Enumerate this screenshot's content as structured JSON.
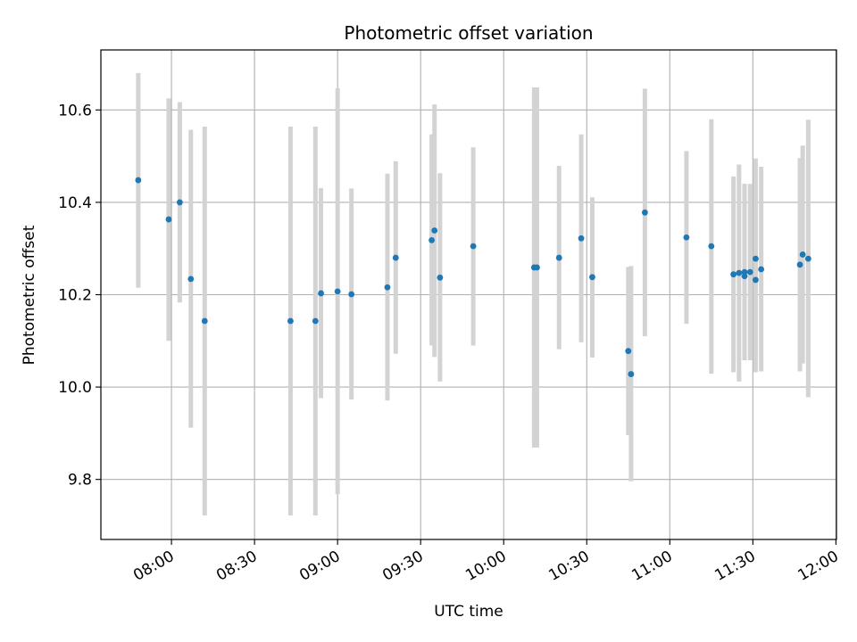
{
  "chart_data": {
    "type": "scatter",
    "title": "Photometric offset variation",
    "xlabel": "UTC time",
    "ylabel": "Photometric offset",
    "x_ticks": [
      "08:00",
      "08:30",
      "09:00",
      "09:30",
      "10:00",
      "10:30",
      "11:00",
      "11:30",
      "12:00"
    ],
    "x_tick_minutes": [
      480,
      510,
      540,
      570,
      600,
      630,
      660,
      690,
      720
    ],
    "y_ticks": [
      9.8,
      10.0,
      10.2,
      10.4,
      10.6
    ],
    "xlim": [
      "07:35",
      "12:00"
    ],
    "ylim": [
      9.67,
      10.73
    ],
    "grid": true,
    "marker_color": "#1f77b4",
    "errorbar_color": "#d3d3d3",
    "points": [
      {
        "t": "07:48",
        "y": 10.448,
        "low": 10.215,
        "high": 10.68
      },
      {
        "t": "07:59",
        "y": 10.363,
        "low": 10.1,
        "high": 10.625
      },
      {
        "t": "08:03",
        "y": 10.4,
        "low": 10.183,
        "high": 10.617
      },
      {
        "t": "08:07",
        "y": 10.234,
        "low": 9.912,
        "high": 10.557
      },
      {
        "t": "08:12",
        "y": 10.143,
        "low": 9.722,
        "high": 10.564
      },
      {
        "t": "08:43",
        "y": 10.143,
        "low": 9.722,
        "high": 10.564
      },
      {
        "t": "08:52",
        "y": 10.143,
        "low": 9.722,
        "high": 10.564
      },
      {
        "t": "08:54",
        "y": 10.203,
        "low": 9.976,
        "high": 10.431
      },
      {
        "t": "09:00",
        "y": 10.207,
        "low": 9.768,
        "high": 10.647
      },
      {
        "t": "09:05",
        "y": 10.201,
        "low": 9.973,
        "high": 10.43
      },
      {
        "t": "09:18",
        "y": 10.216,
        "low": 9.971,
        "high": 10.462
      },
      {
        "t": "09:21",
        "y": 10.28,
        "low": 10.072,
        "high": 10.489
      },
      {
        "t": "09:34",
        "y": 10.318,
        "low": 10.09,
        "high": 10.547
      },
      {
        "t": "09:35",
        "y": 10.339,
        "low": 10.065,
        "high": 10.612
      },
      {
        "t": "09:37",
        "y": 10.237,
        "low": 10.012,
        "high": 10.463
      },
      {
        "t": "09:49",
        "y": 10.305,
        "low": 10.09,
        "high": 10.519
      },
      {
        "t": "10:11",
        "y": 10.259,
        "low": 9.869,
        "high": 10.649
      },
      {
        "t": "10:12",
        "y": 10.259,
        "low": 9.869,
        "high": 10.649
      },
      {
        "t": "10:20",
        "y": 10.28,
        "low": 10.082,
        "high": 10.479
      },
      {
        "t": "10:28",
        "y": 10.322,
        "low": 10.097,
        "high": 10.547
      },
      {
        "t": "10:32",
        "y": 10.238,
        "low": 10.064,
        "high": 10.411
      },
      {
        "t": "10:45",
        "y": 10.078,
        "low": 9.896,
        "high": 10.26
      },
      {
        "t": "10:46",
        "y": 10.028,
        "low": 9.796,
        "high": 10.262
      },
      {
        "t": "10:51",
        "y": 10.378,
        "low": 10.11,
        "high": 10.646
      },
      {
        "t": "11:06",
        "y": 10.324,
        "low": 10.137,
        "high": 10.511
      },
      {
        "t": "11:15",
        "y": 10.305,
        "low": 10.029,
        "high": 10.58
      },
      {
        "t": "11:23",
        "y": 10.244,
        "low": 10.032,
        "high": 10.456
      },
      {
        "t": "11:25",
        "y": 10.247,
        "low": 10.012,
        "high": 10.482
      },
      {
        "t": "11:27",
        "y": 10.249,
        "low": 10.058,
        "high": 10.44
      },
      {
        "t": "11:27",
        "y": 10.24,
        "low": 10.058,
        "high": 10.44
      },
      {
        "t": "11:29",
        "y": 10.249,
        "low": 10.058,
        "high": 10.44
      },
      {
        "t": "11:31",
        "y": 10.278,
        "low": 10.061,
        "high": 10.495
      },
      {
        "t": "11:31",
        "y": 10.232,
        "low": 10.032,
        "high": 10.432
      },
      {
        "t": "11:33",
        "y": 10.255,
        "low": 10.034,
        "high": 10.477
      },
      {
        "t": "11:47",
        "y": 10.265,
        "low": 10.034,
        "high": 10.496
      },
      {
        "t": "11:48",
        "y": 10.287,
        "low": 10.051,
        "high": 10.523
      },
      {
        "t": "11:50",
        "y": 10.278,
        "low": 9.978,
        "high": 10.579
      }
    ]
  }
}
